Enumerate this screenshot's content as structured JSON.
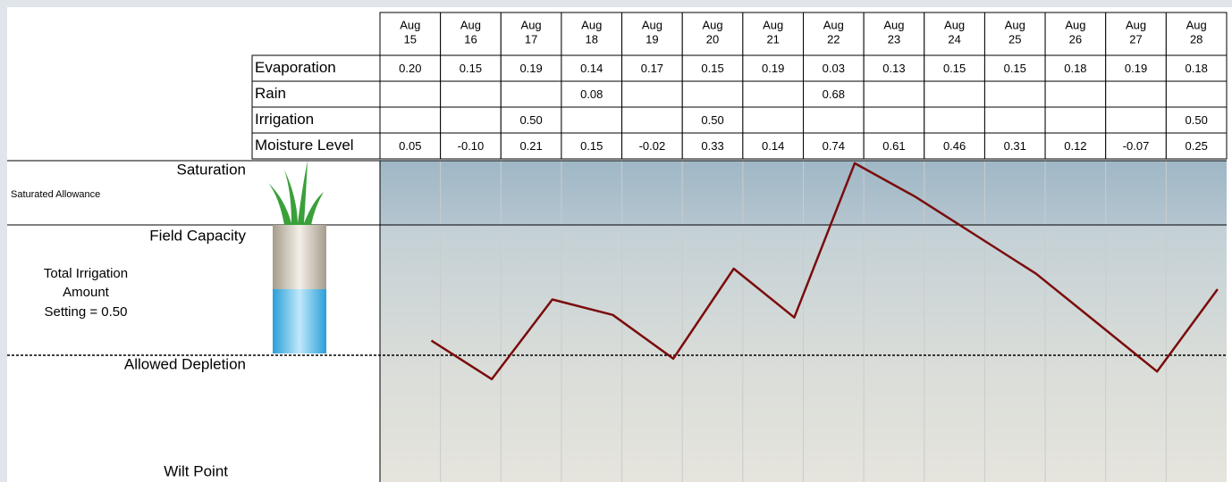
{
  "table": {
    "columns": [
      {
        "month": "Aug",
        "day": "15"
      },
      {
        "month": "Aug",
        "day": "16"
      },
      {
        "month": "Aug",
        "day": "17"
      },
      {
        "month": "Aug",
        "day": "18"
      },
      {
        "month": "Aug",
        "day": "19"
      },
      {
        "month": "Aug",
        "day": "20"
      },
      {
        "month": "Aug",
        "day": "21"
      },
      {
        "month": "Aug",
        "day": "22"
      },
      {
        "month": "Aug",
        "day": "23"
      },
      {
        "month": "Aug",
        "day": "24"
      },
      {
        "month": "Aug",
        "day": "25"
      },
      {
        "month": "Aug",
        "day": "26"
      },
      {
        "month": "Aug",
        "day": "27"
      },
      {
        "month": "Aug",
        "day": "28"
      }
    ],
    "rows": [
      {
        "label": "Evaporation",
        "values": [
          "0.20",
          "0.15",
          "0.19",
          "0.14",
          "0.17",
          "0.15",
          "0.19",
          "0.03",
          "0.13",
          "0.15",
          "0.15",
          "0.18",
          "0.19",
          "0.18"
        ]
      },
      {
        "label": "Rain",
        "values": [
          null,
          null,
          null,
          "0.08",
          null,
          null,
          null,
          "0.68",
          null,
          null,
          null,
          null,
          null,
          null
        ]
      },
      {
        "label": "Irrigation",
        "values": [
          null,
          null,
          "0.50",
          null,
          null,
          "0.50",
          null,
          null,
          null,
          null,
          null,
          null,
          null,
          "0.50"
        ]
      },
      {
        "label": "Moisture Level",
        "values": [
          "0.05",
          "-0.10",
          "0.21",
          "0.15",
          "-0.02",
          "0.33",
          "0.14",
          "0.74",
          "0.61",
          "0.46",
          "0.31",
          "0.12",
          "-0.07",
          "0.25"
        ]
      }
    ]
  },
  "levels": {
    "saturation": "Saturation",
    "saturated_allowance": "Saturated Allowance",
    "field_capacity": "Field Capacity",
    "irrigation_setting": [
      "Total Irrigation",
      "Amount",
      "Setting = 0.50"
    ],
    "allowed_depletion": "Allowed Depletion",
    "wilt_point": "Wilt Point"
  },
  "chart": {
    "line_color": "#7a0c0c",
    "ylim": [
      -0.5,
      0.75
    ]
  }
}
